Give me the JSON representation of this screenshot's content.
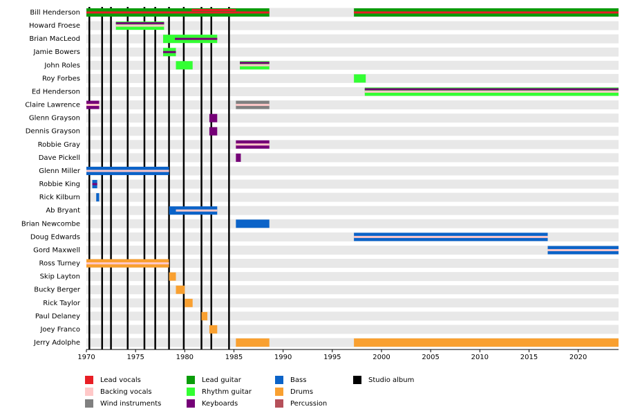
{
  "chart_data": {
    "type": "timeline",
    "categories": [
      "Bill Henderson",
      "Howard Froese",
      "Brian MacLeod",
      "Jamie Bowers",
      "John Roles",
      "Roy Forbes",
      "Ed Henderson",
      "Claire Lawrence",
      "Glenn Grayson",
      "Dennis Grayson",
      "Robbie Gray",
      "Dave Pickell",
      "Glenn Miller",
      "Robbie King",
      "Rick Kilburn",
      "Ab Bryant",
      "Brian Newcombe",
      "Doug Edwards",
      "Gord Maxwell",
      "Ross Turney",
      "Skip Layton",
      "Bucky Berger",
      "Rick Taylor",
      "Paul Delaney",
      "Joey Franco",
      "Jerry Adolphe"
    ],
    "xlim": [
      1970,
      2024.1
    ],
    "xticks": [
      1970,
      1975,
      1980,
      1985,
      1990,
      1995,
      2000,
      2005,
      2010,
      2015,
      2020
    ],
    "roles": [
      {
        "name": "Lead vocals",
        "color": "#e81e25"
      },
      {
        "name": "Backing vocals",
        "color": "#ffc8c8"
      },
      {
        "name": "Wind instruments",
        "color": "#808080"
      },
      {
        "name": "Lead guitar",
        "color": "#0a9c0a"
      },
      {
        "name": "Rhythm guitar",
        "color": "#33ff33"
      },
      {
        "name": "Keyboards",
        "color": "#750077"
      },
      {
        "name": "Bass",
        "color": "#0b63c8"
      },
      {
        "name": "Drums",
        "color": "#f9a030"
      },
      {
        "name": "Percussion",
        "color": "#b5505a"
      }
    ],
    "albums": {
      "name": "Studio album",
      "color": "#000000",
      "x": [
        1970.3,
        1971.6,
        1972.5,
        1974.2,
        1975.9,
        1977.0,
        1978.4,
        1979.9,
        1981.7,
        1982.7,
        1984.5
      ]
    },
    "bars": [
      {
        "row": 0,
        "role": 3,
        "start": 1970,
        "end": 1988.6
      },
      {
        "row": 0,
        "role": 0,
        "start": 1970,
        "end": 1988.6
      },
      {
        "row": 0,
        "role": 0,
        "start": 1980.7,
        "end": 1985.2
      },
      {
        "row": 0,
        "role": 3,
        "start": 1997.2,
        "end": 2024.1
      },
      {
        "row": 0,
        "role": 0,
        "start": 1997.2,
        "end": 2024.1
      },
      {
        "row": 1,
        "role": 4,
        "start": 1973.0,
        "end": 1977.9
      },
      {
        "row": 1,
        "role": 1,
        "start": 1973.0,
        "end": 1977.9
      },
      {
        "row": 1,
        "role": 5,
        "start": 1973.0,
        "end": 1977.9
      },
      {
        "row": 2,
        "role": 4,
        "start": 1977.8,
        "end": 1983.3
      },
      {
        "row": 2,
        "role": 7,
        "start": 1980.7,
        "end": 1983.3
      },
      {
        "row": 2,
        "role": 5,
        "start": 1979.0,
        "end": 1983.3
      },
      {
        "row": 3,
        "role": 4,
        "start": 1977.8,
        "end": 1979.1
      },
      {
        "row": 3,
        "role": 5,
        "start": 1977.8,
        "end": 1979.1
      },
      {
        "row": 4,
        "role": 4,
        "start": 1979.1,
        "end": 1980.8
      },
      {
        "row": 4,
        "role": 4,
        "start": 1985.6,
        "end": 1988.6
      },
      {
        "row": 4,
        "role": 1,
        "start": 1985.6,
        "end": 1988.6
      },
      {
        "row": 4,
        "role": 5,
        "start": 1985.6,
        "end": 1988.6
      },
      {
        "row": 5,
        "role": 4,
        "start": 1997.2,
        "end": 1998.4
      },
      {
        "row": 6,
        "role": 4,
        "start": 1998.3,
        "end": 2024.1
      },
      {
        "row": 6,
        "role": 1,
        "start": 1998.3,
        "end": 2024.1
      },
      {
        "row": 6,
        "role": 5,
        "start": 1998.3,
        "end": 2024.1
      },
      {
        "row": 7,
        "role": 5,
        "start": 1970,
        "end": 1971.3
      },
      {
        "row": 7,
        "role": 1,
        "start": 1970,
        "end": 1971.3
      },
      {
        "row": 7,
        "role": 2,
        "start": 1985.2,
        "end": 1988.6
      },
      {
        "row": 7,
        "role": 1,
        "start": 1985.2,
        "end": 1988.6
      },
      {
        "row": 8,
        "role": 5,
        "start": 1982.5,
        "end": 1983.3
      },
      {
        "row": 9,
        "role": 5,
        "start": 1982.5,
        "end": 1983.3
      },
      {
        "row": 10,
        "role": 5,
        "start": 1985.2,
        "end": 1988.6
      },
      {
        "row": 10,
        "role": 1,
        "start": 1985.2,
        "end": 1988.6
      },
      {
        "row": 11,
        "role": 5,
        "start": 1985.2,
        "end": 1985.7
      },
      {
        "row": 12,
        "role": 6,
        "start": 1970,
        "end": 1978.4
      },
      {
        "row": 12,
        "role": 1,
        "start": 1970,
        "end": 1978.4
      },
      {
        "row": 13,
        "role": 6,
        "start": 1970.6,
        "end": 1971.1
      },
      {
        "row": 13,
        "role": 5,
        "start": 1970.6,
        "end": 1971.1
      },
      {
        "row": 14,
        "role": 6,
        "start": 1971.0,
        "end": 1971.3
      },
      {
        "row": 15,
        "role": 6,
        "start": 1978.4,
        "end": 1979.1
      },
      {
        "row": 15,
        "role": 6,
        "start": 1979.1,
        "end": 1983.3
      },
      {
        "row": 15,
        "role": 1,
        "start": 1979.1,
        "end": 1983.3
      },
      {
        "row": 16,
        "role": 6,
        "start": 1985.2,
        "end": 1988.6
      },
      {
        "row": 17,
        "role": 6,
        "start": 1997.2,
        "end": 2016.9
      },
      {
        "row": 17,
        "role": 1,
        "start": 1997.2,
        "end": 2016.9
      },
      {
        "row": 18,
        "role": 6,
        "start": 2016.9,
        "end": 2024.1
      },
      {
        "row": 18,
        "role": 1,
        "start": 2016.9,
        "end": 2024.1
      },
      {
        "row": 19,
        "role": 7,
        "start": 1970,
        "end": 1978.4
      },
      {
        "row": 19,
        "role": 1,
        "start": 1970,
        "end": 1978.4
      },
      {
        "row": 20,
        "role": 7,
        "start": 1978.4,
        "end": 1979.1
      },
      {
        "row": 21,
        "role": 7,
        "start": 1979.1,
        "end": 1980.0
      },
      {
        "row": 22,
        "role": 7,
        "start": 1980.0,
        "end": 1980.8
      },
      {
        "row": 23,
        "role": 7,
        "start": 1981.7,
        "end": 1982.3
      },
      {
        "row": 24,
        "role": 7,
        "start": 1982.5,
        "end": 1983.3
      },
      {
        "row": 25,
        "role": 7,
        "start": 1985.2,
        "end": 1988.6
      },
      {
        "row": 25,
        "role": 7,
        "start": 1997.2,
        "end": 2024.1
      }
    ]
  }
}
